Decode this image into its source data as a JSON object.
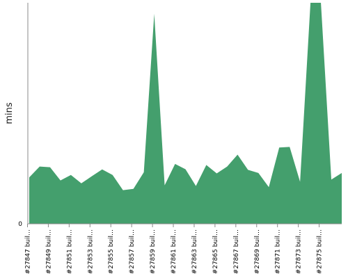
{
  "chart_data": {
    "type": "area",
    "title": "",
    "xlabel": "",
    "ylabel": "mins",
    "ylim": [
      0,
      100
    ],
    "y_ticks": [
      {
        "value": 0,
        "label": "0"
      }
    ],
    "grid": false,
    "legend": "none",
    "color": "#449f6d",
    "x_tick_labels": [
      "#27847 buil…",
      "#27849 buil…",
      "#27851 buil…",
      "#27853 buil…",
      "#27855 buil…",
      "#27857 buil…",
      "#27859 buil…",
      "#27861 buil…",
      "#27863 buil…",
      "#27865 buil…",
      "#27867 buil…",
      "#27869 buil…",
      "#27871 buil…",
      "#27873 buil…",
      "#27875 buil…"
    ],
    "values": [
      21,
      25.9,
      25.6,
      19.6,
      22.1,
      18.3,
      21.5,
      24.6,
      22.1,
      15.2,
      15.8,
      23.3,
      95,
      17.4,
      27.1,
      24.7,
      17.1,
      26.6,
      22.8,
      25.9,
      31.3,
      24.4,
      23,
      16.6,
      34.5,
      34.8,
      19,
      100,
      100,
      20,
      23
    ]
  }
}
